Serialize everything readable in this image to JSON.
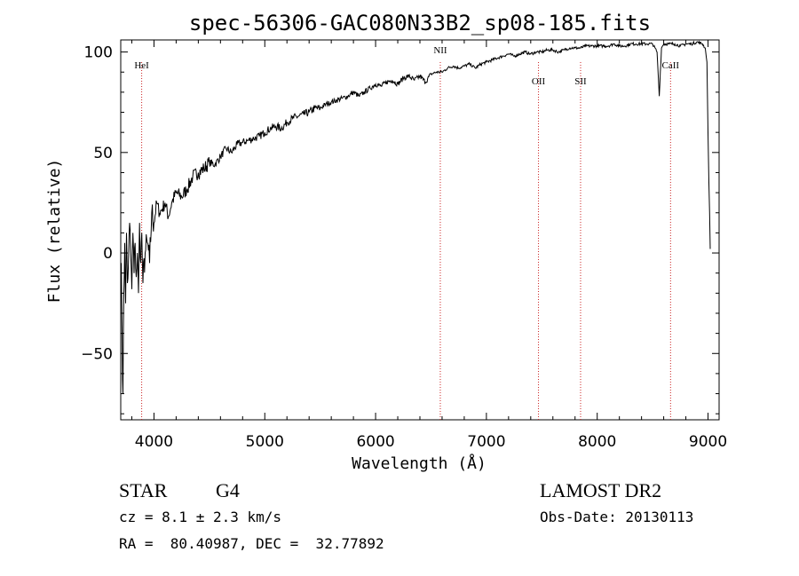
{
  "chart_data": {
    "type": "line",
    "title": "spec-56306-GAC080N33B2_sp08-185.fits",
    "xlabel": "Wavelength (Å)",
    "ylabel": "Flux (relative)",
    "xlim": [
      3700,
      9100
    ],
    "ylim": [
      -83,
      106
    ],
    "xticks": [
      4000,
      5000,
      6000,
      7000,
      8000,
      9000
    ],
    "yticks": [
      -50,
      0,
      50,
      100
    ],
    "grid": false,
    "legend": "none",
    "line_color": "#000000",
    "marker_color": "#cc2222",
    "series": [
      {
        "x": [
          3705,
          3712,
          3720,
          3728,
          3736,
          3744,
          3752,
          3760,
          3770,
          3780,
          3790,
          3800,
          3810,
          3820,
          3830,
          3840,
          3850,
          3860,
          3870,
          3880,
          3890,
          3900,
          3920,
          3940,
          3960,
          3980,
          4000,
          4025,
          4050,
          4075,
          4100,
          4130,
          4160,
          4200,
          4250,
          4300,
          4350,
          4400,
          4450,
          4500,
          4550,
          4600,
          4650,
          4700,
          4750,
          4800,
          4850,
          4900,
          4950,
          5000,
          5050,
          5100,
          5150,
          5200,
          5250,
          5300,
          5350,
          5400,
          5450,
          5500,
          5550,
          5600,
          5650,
          5700,
          5750,
          5800,
          5850,
          5900,
          5950,
          6000,
          6050,
          6100,
          6150,
          6200,
          6250,
          6300,
          6350,
          6400,
          6450,
          6500,
          6550,
          6600,
          6650,
          6700,
          6750,
          6800,
          6850,
          6900,
          6950,
          7000,
          7050,
          7100,
          7150,
          7200,
          7250,
          7300,
          7350,
          7400,
          7450,
          7500,
          7550,
          7600,
          7650,
          7700,
          7750,
          7800,
          7850,
          7900,
          7950,
          8000,
          8050,
          8100,
          8150,
          8200,
          8250,
          8300,
          8350,
          8400,
          8450,
          8500,
          8540,
          8560,
          8580,
          8600,
          8650,
          8700,
          8750,
          8800,
          8850,
          8900,
          8950,
          8975,
          8990,
          9000,
          9008,
          9014,
          9020
        ],
        "y": [
          -5,
          -40,
          -70,
          -20,
          5,
          -25,
          10,
          -15,
          -5,
          15,
          0,
          -18,
          10,
          -10,
          5,
          -12,
          0,
          -20,
          15,
          -5,
          10,
          -15,
          0,
          5,
          -5,
          20,
          15,
          25,
          20,
          22,
          25,
          18,
          25,
          30,
          28,
          32,
          38,
          40,
          42,
          45,
          44,
          48,
          52,
          50,
          54,
          55,
          56,
          57,
          58,
          60,
          62,
          63,
          62,
          65,
          67,
          68,
          69,
          70,
          72,
          72,
          74,
          75,
          76,
          77,
          78,
          80,
          78,
          80,
          82,
          84,
          83,
          85,
          86,
          84,
          87,
          88,
          86,
          88,
          85,
          89,
          90,
          90,
          92,
          93,
          92,
          93,
          94,
          92,
          94,
          95,
          96,
          97,
          98,
          99,
          98,
          99,
          100,
          99,
          100,
          100,
          101,
          101,
          100,
          101,
          102,
          102,
          102,
          103,
          103,
          103,
          103,
          103,
          104,
          103,
          103,
          104,
          104,
          104,
          104,
          104,
          100,
          78,
          102,
          104,
          104,
          104,
          103,
          104,
          104,
          105,
          104,
          102,
          95,
          60,
          35,
          20,
          2
        ]
      }
    ],
    "line_markers": [
      {
        "label": "HeI",
        "x": 3889
      },
      {
        "label": "NII",
        "x": 6584
      },
      {
        "label": "OII",
        "x": 7470
      },
      {
        "label": "SII",
        "x": 7850
      },
      {
        "label": "CaII",
        "x": 8662
      }
    ],
    "annotations": {
      "object_class": "STAR",
      "subclass": "G4",
      "survey": "LAMOST DR2",
      "redshift": "cz = 8.1 ± 2.3 km/s",
      "obs_date": "Obs-Date: 20130113",
      "coords": "RA =  80.40987, DEC =  32.77892"
    }
  }
}
